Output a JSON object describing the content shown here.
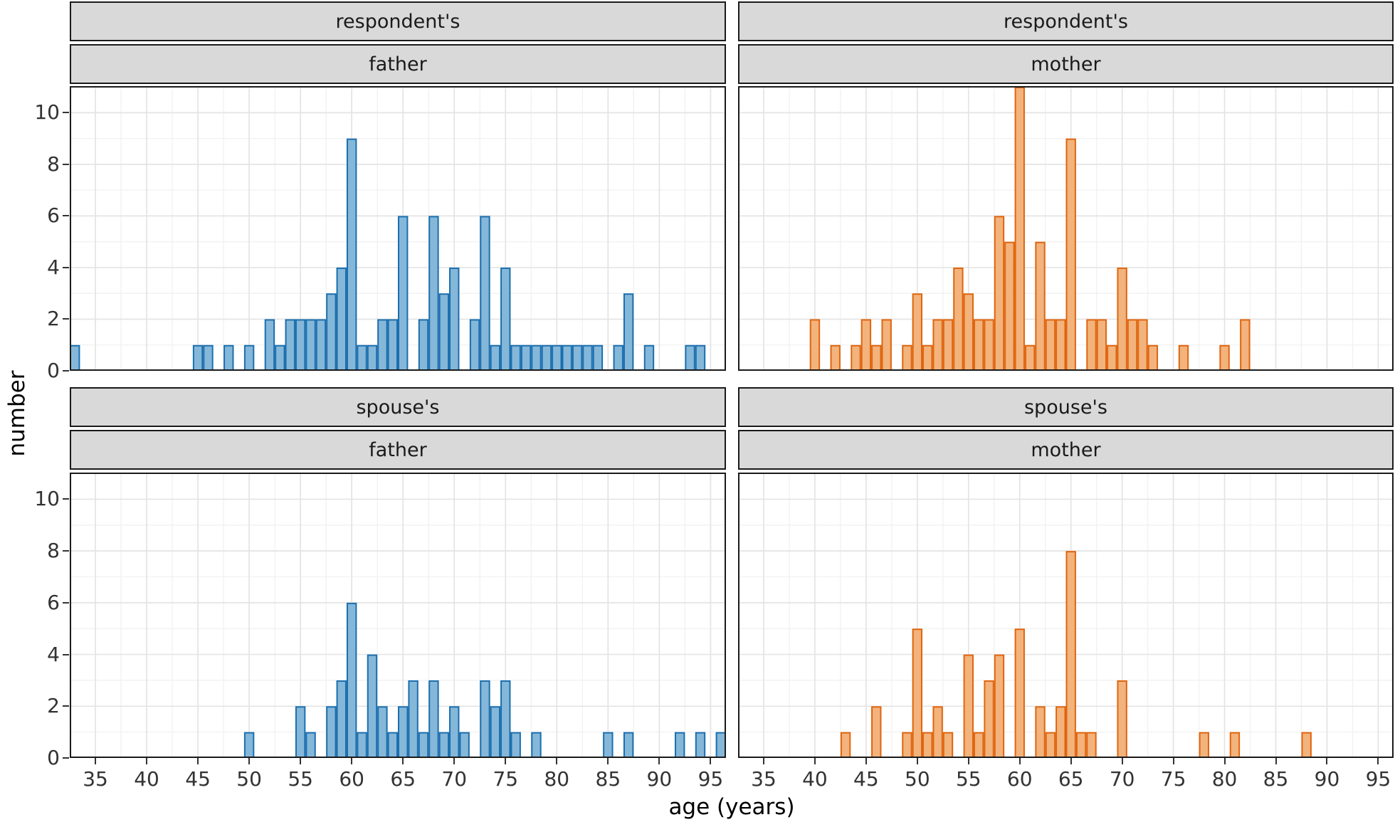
{
  "figure": {
    "type": "faceted histogram",
    "facet_rows": [
      "respondent's",
      "spouse's"
    ],
    "facet_cols": [
      "father",
      "mother"
    ]
  },
  "chart_data": {
    "type": "bar",
    "title": "",
    "xlabel": "age (years)",
    "ylabel": "number",
    "xlim": [
      32.5,
      96.5
    ],
    "ylim": [
      0,
      11.03
    ],
    "x_ticks": [
      35,
      40,
      45,
      50,
      55,
      60,
      65,
      70,
      75,
      80,
      85,
      90,
      95
    ],
    "y_ticks": [
      0,
      2,
      4,
      6,
      8,
      10
    ],
    "x_minor_ticks": [
      37.5,
      42.5,
      47.5,
      52.5,
      57.5,
      62.5,
      67.5,
      72.5,
      77.5,
      82.5,
      87.5,
      92.5
    ],
    "y_minor_ticks": [
      1,
      3,
      5,
      7,
      9,
      11
    ],
    "binwidth": 1,
    "grid": true,
    "legend": "none",
    "panels": [
      {
        "row": "respondent's",
        "col": "father",
        "fill": "#85b7d9",
        "stroke": "#1b6fae",
        "values": [
          [
            33,
            1
          ],
          [
            45,
            1
          ],
          [
            46,
            1
          ],
          [
            48,
            1
          ],
          [
            50,
            1
          ],
          [
            52,
            2
          ],
          [
            53,
            1
          ],
          [
            54,
            2
          ],
          [
            55,
            2
          ],
          [
            56,
            2
          ],
          [
            57,
            2
          ],
          [
            58,
            3
          ],
          [
            59,
            4
          ],
          [
            60,
            9
          ],
          [
            61,
            1
          ],
          [
            62,
            1
          ],
          [
            63,
            2
          ],
          [
            64,
            2
          ],
          [
            65,
            6
          ],
          [
            67,
            2
          ],
          [
            68,
            6
          ],
          [
            69,
            3
          ],
          [
            70,
            4
          ],
          [
            72,
            2
          ],
          [
            73,
            6
          ],
          [
            74,
            1
          ],
          [
            75,
            4
          ],
          [
            76,
            1
          ],
          [
            77,
            1
          ],
          [
            78,
            1
          ],
          [
            79,
            1
          ],
          [
            80,
            1
          ],
          [
            81,
            1
          ],
          [
            82,
            1
          ],
          [
            83,
            1
          ],
          [
            84,
            1
          ],
          [
            86,
            1
          ],
          [
            87,
            3
          ],
          [
            89,
            1
          ],
          [
            93,
            1
          ],
          [
            94,
            1
          ]
        ]
      },
      {
        "row": "respondent's",
        "col": "mother",
        "fill": "#f2b37c",
        "stroke": "#e0650f",
        "values": [
          [
            40,
            2
          ],
          [
            42,
            1
          ],
          [
            44,
            1
          ],
          [
            45,
            2
          ],
          [
            46,
            1
          ],
          [
            47,
            2
          ],
          [
            49,
            1
          ],
          [
            50,
            3
          ],
          [
            51,
            1
          ],
          [
            52,
            2
          ],
          [
            53,
            2
          ],
          [
            54,
            4
          ],
          [
            55,
            3
          ],
          [
            56,
            2
          ],
          [
            57,
            2
          ],
          [
            58,
            6
          ],
          [
            59,
            5
          ],
          [
            60,
            11
          ],
          [
            61,
            1
          ],
          [
            62,
            5
          ],
          [
            63,
            2
          ],
          [
            64,
            2
          ],
          [
            65,
            9
          ],
          [
            67,
            2
          ],
          [
            68,
            2
          ],
          [
            69,
            1
          ],
          [
            70,
            4
          ],
          [
            71,
            2
          ],
          [
            72,
            2
          ],
          [
            73,
            1
          ],
          [
            76,
            1
          ],
          [
            80,
            1
          ],
          [
            82,
            2
          ]
        ]
      },
      {
        "row": "spouse's",
        "col": "father",
        "fill": "#85b7d9",
        "stroke": "#1b6fae",
        "values": [
          [
            50,
            1
          ],
          [
            55,
            2
          ],
          [
            56,
            1
          ],
          [
            58,
            2
          ],
          [
            59,
            3
          ],
          [
            60,
            6
          ],
          [
            61,
            1
          ],
          [
            62,
            4
          ],
          [
            63,
            2
          ],
          [
            64,
            1
          ],
          [
            65,
            2
          ],
          [
            66,
            3
          ],
          [
            67,
            1
          ],
          [
            68,
            3
          ],
          [
            69,
            1
          ],
          [
            70,
            2
          ],
          [
            71,
            1
          ],
          [
            73,
            3
          ],
          [
            74,
            2
          ],
          [
            75,
            3
          ],
          [
            76,
            1
          ],
          [
            78,
            1
          ],
          [
            85,
            1
          ],
          [
            87,
            1
          ],
          [
            92,
            1
          ],
          [
            94,
            1
          ],
          [
            96,
            1
          ]
        ]
      },
      {
        "row": "spouse's",
        "col": "mother",
        "fill": "#f2b37c",
        "stroke": "#e0650f",
        "values": [
          [
            43,
            1
          ],
          [
            46,
            2
          ],
          [
            49,
            1
          ],
          [
            50,
            5
          ],
          [
            51,
            1
          ],
          [
            52,
            2
          ],
          [
            53,
            1
          ],
          [
            55,
            4
          ],
          [
            56,
            1
          ],
          [
            57,
            3
          ],
          [
            58,
            4
          ],
          [
            60,
            5
          ],
          [
            62,
            2
          ],
          [
            63,
            1
          ],
          [
            64,
            2
          ],
          [
            65,
            8
          ],
          [
            66,
            1
          ],
          [
            67,
            1
          ],
          [
            70,
            3
          ],
          [
            78,
            1
          ],
          [
            81,
            1
          ],
          [
            88,
            1
          ]
        ]
      }
    ],
    "colors": {
      "strip_bg": "#d9d9d9",
      "panel_border": "#1a1a1a",
      "grid_major": "#e4e4e4",
      "grid_minor": "#f1f1f1",
      "tick_text": "#333333",
      "title_text": "#000000"
    }
  }
}
